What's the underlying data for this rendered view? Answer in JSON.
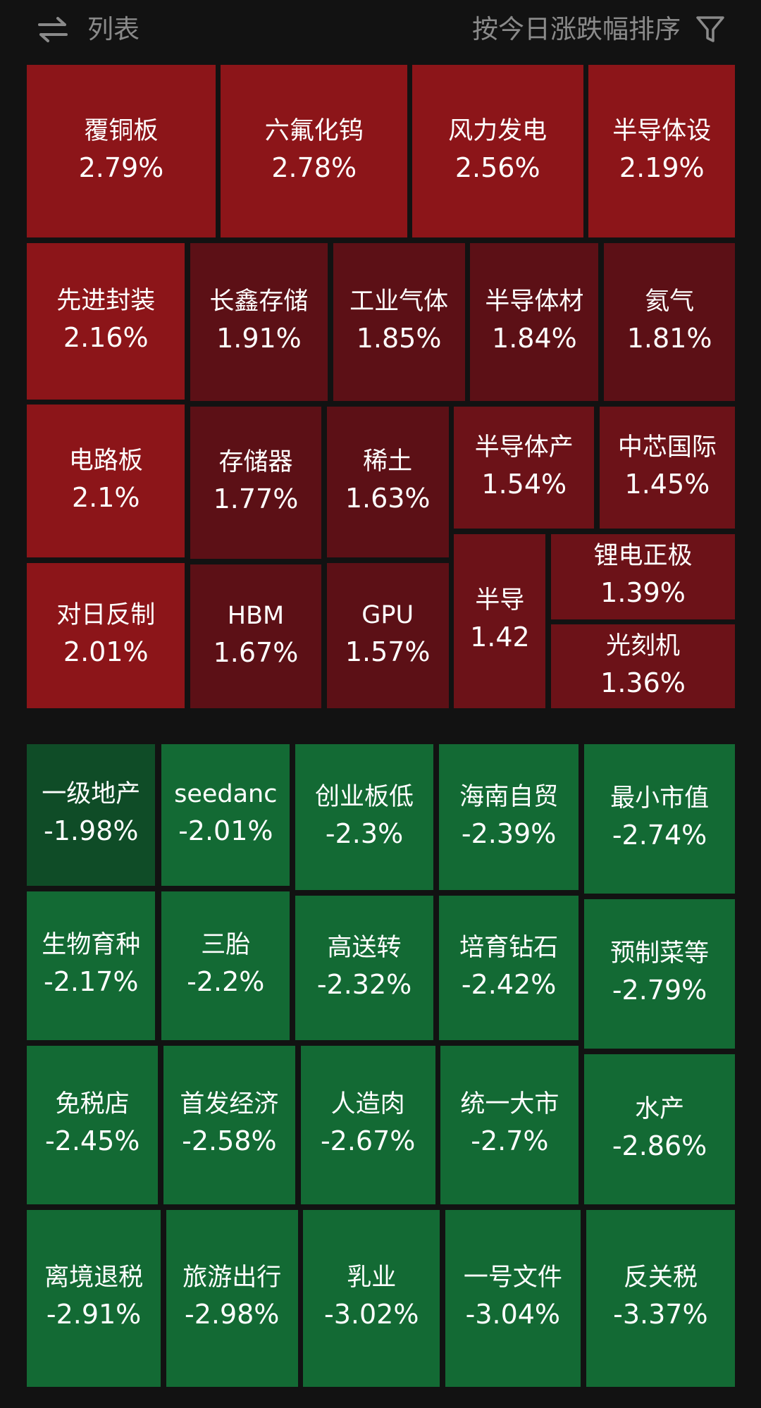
{
  "header": {
    "toggle_label": "列表",
    "sort_label": "按今日涨跌幅排序"
  },
  "gainers": [
    {
      "name": "覆铜板",
      "change": "2.79%"
    },
    {
      "name": "六氟化钨",
      "change": "2.78%"
    },
    {
      "name": "风力发电",
      "change": "2.56%"
    },
    {
      "name": "半导体设",
      "change": "2.19%"
    },
    {
      "name": "先进封装",
      "change": "2.16%"
    },
    {
      "name": "长鑫存储",
      "change": "1.91%"
    },
    {
      "name": "工业气体",
      "change": "1.85%"
    },
    {
      "name": "半导体材",
      "change": "1.84%"
    },
    {
      "name": "氦气",
      "change": "1.81%"
    },
    {
      "name": "电路板",
      "change": "2.1%"
    },
    {
      "name": "存储器",
      "change": "1.77%"
    },
    {
      "name": "稀土",
      "change": "1.63%"
    },
    {
      "name": "半导体产",
      "change": "1.54%"
    },
    {
      "name": "中芯国际",
      "change": "1.45%"
    },
    {
      "name": "对日反制",
      "change": "2.01%"
    },
    {
      "name": "HBM",
      "change": "1.67%"
    },
    {
      "name": "GPU",
      "change": "1.57%"
    },
    {
      "name": "半导",
      "change": "1.42"
    },
    {
      "name": "锂电正极",
      "change": "1.39%"
    },
    {
      "name": "光刻机",
      "change": "1.36%"
    }
  ],
  "losers": [
    {
      "name": "一级地产",
      "change": "-1.98%"
    },
    {
      "name": "seedanc",
      "change": "-2.01%"
    },
    {
      "name": "创业板低",
      "change": "-2.3%"
    },
    {
      "name": "海南自贸",
      "change": "-2.39%"
    },
    {
      "name": "最小市值",
      "change": "-2.74%"
    },
    {
      "name": "生物育种",
      "change": "-2.17%"
    },
    {
      "name": "三胎",
      "change": "-2.2%"
    },
    {
      "name": "高送转",
      "change": "-2.32%"
    },
    {
      "name": "培育钻石",
      "change": "-2.42%"
    },
    {
      "name": "预制菜等",
      "change": "-2.79%"
    },
    {
      "name": "免税店",
      "change": "-2.45%"
    },
    {
      "name": "首发经济",
      "change": "-2.58%"
    },
    {
      "name": "人造肉",
      "change": "-2.67%"
    },
    {
      "name": "统一大市",
      "change": "-2.7%"
    },
    {
      "name": "水产",
      "change": "-2.86%"
    },
    {
      "name": "离境退税",
      "change": "-2.91%"
    },
    {
      "name": "旅游出行",
      "change": "-2.98%"
    },
    {
      "name": "乳业",
      "change": "-3.02%"
    },
    {
      "name": "一号文件",
      "change": "-3.04%"
    },
    {
      "name": "反关税",
      "change": "-3.37%"
    }
  ]
}
